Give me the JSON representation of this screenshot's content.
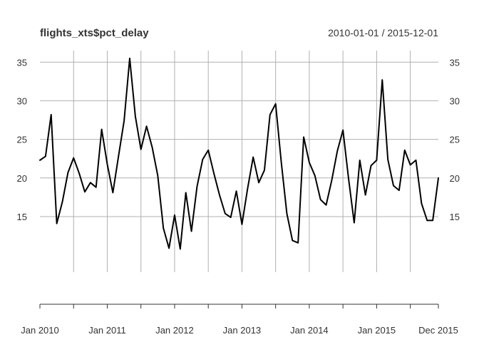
{
  "chart_data": {
    "type": "line",
    "title": "flights_xts$pct_delay",
    "date_range": "2010-01-01 / 2015-12-01",
    "x_tick_labels": [
      "Jan 2010",
      "Jan 2011",
      "Jan 2012",
      "Jan 2013",
      "Jan 2014",
      "Jan 2015",
      "Dec 2015"
    ],
    "y_tick_labels": [
      "15",
      "20",
      "25",
      "30",
      "35"
    ],
    "ylim": [
      7.8,
      36.5
    ],
    "grid": true,
    "series": [
      {
        "x": [
          "2010-01",
          "2010-02",
          "2010-03",
          "2010-04",
          "2010-05",
          "2010-06",
          "2010-07",
          "2010-08",
          "2010-09",
          "2010-10",
          "2010-11",
          "2010-12",
          "2011-01",
          "2011-02",
          "2011-03",
          "2011-04",
          "2011-05",
          "2011-06",
          "2011-07",
          "2011-08",
          "2011-09",
          "2011-10",
          "2011-11",
          "2011-12",
          "2012-01",
          "2012-02",
          "2012-03",
          "2012-04",
          "2012-05",
          "2012-06",
          "2012-07",
          "2012-08",
          "2012-09",
          "2012-10",
          "2012-11",
          "2012-12",
          "2013-01",
          "2013-02",
          "2013-03",
          "2013-04",
          "2013-05",
          "2013-06",
          "2013-07",
          "2013-08",
          "2013-09",
          "2013-10",
          "2013-11",
          "2013-12",
          "2014-01",
          "2014-02",
          "2014-03",
          "2014-04",
          "2014-05",
          "2014-06",
          "2014-07",
          "2014-08",
          "2014-09",
          "2014-10",
          "2014-11",
          "2014-12",
          "2015-01",
          "2015-02",
          "2015-03",
          "2015-04",
          "2015-05",
          "2015-06",
          "2015-07",
          "2015-08",
          "2015-09",
          "2015-10",
          "2015-11",
          "2015-12"
        ],
        "values": [
          22.3,
          22.8,
          28.2,
          14.1,
          16.9,
          20.7,
          22.6,
          20.6,
          18.2,
          19.4,
          18.8,
          26.3,
          21.8,
          18.1,
          22.8,
          27.4,
          35.5,
          28.0,
          23.7,
          26.7,
          24.0,
          20.3,
          13.5,
          10.9,
          15.2,
          10.8,
          18.1,
          13.1,
          18.9,
          22.4,
          23.6,
          20.6,
          17.8,
          15.4,
          14.9,
          18.3,
          14.0,
          18.6,
          22.7,
          19.4,
          21.0,
          28.2,
          29.6,
          22.1,
          15.4,
          11.9,
          11.6,
          25.3,
          22.0,
          20.3,
          17.2,
          16.5,
          19.7,
          23.5,
          26.2,
          19.9,
          14.2,
          22.3,
          17.8,
          21.6,
          22.3,
          32.7,
          22.4,
          19.0,
          18.4,
          23.6,
          21.7,
          22.3,
          16.7,
          14.5,
          14.5,
          20.0
        ]
      }
    ]
  }
}
